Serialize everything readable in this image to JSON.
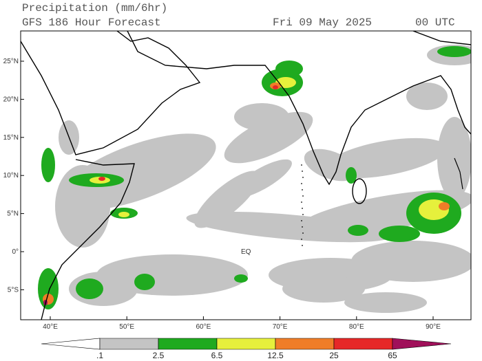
{
  "header": {
    "title": "Precipitation (mm/6hr)",
    "subtitle": "GFS 186 Hour Forecast",
    "date": "Fri 09 May 2025",
    "time": "00 UTC"
  },
  "map": {
    "lat_labels": [
      "25°N",
      "20°N",
      "15°N",
      "10°N",
      "5°N",
      "0°",
      "5°S"
    ],
    "lon_labels": [
      "40°E",
      "50°E",
      "60°E",
      "70°E",
      "80°E",
      "90°E"
    ],
    "annotation": "EQ"
  },
  "colorbar": {
    "labels": [
      ".1",
      "2.5",
      "6.5",
      "12.5",
      "25",
      "65"
    ],
    "colors": [
      "#ffffff",
      "#c4c4c4",
      "#1faa1f",
      "#e6f03c",
      "#f07d28",
      "#e62828",
      "#a0105a"
    ]
  }
}
